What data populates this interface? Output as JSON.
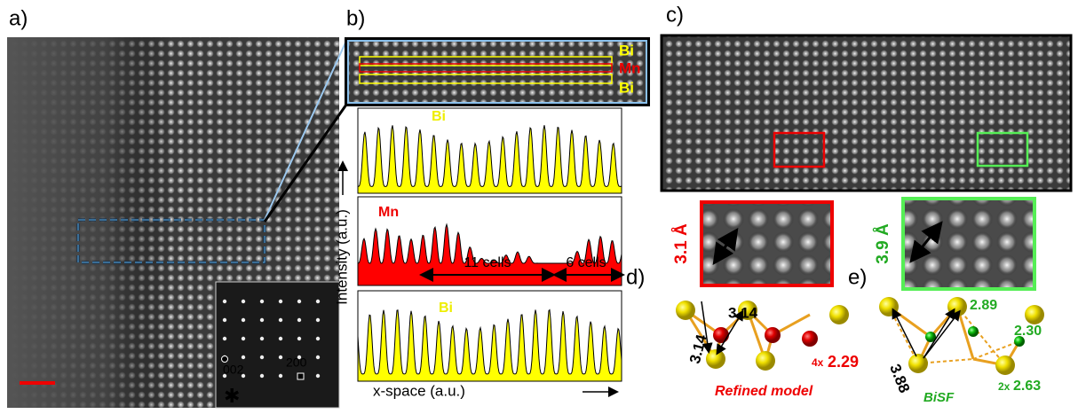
{
  "panels": {
    "a": {
      "label": "a)",
      "fft_labels": [
        "002",
        "200"
      ]
    },
    "b": {
      "label": "b)",
      "image_labels": [
        "Bi",
        "Mn",
        "Bi"
      ],
      "profile_labels": [
        "Bi",
        "Mn",
        "Bi"
      ],
      "spans": [
        "11 cells",
        "6 cells"
      ],
      "y_label": "Intensity (a.u.)",
      "x_label": "x-space (a.u.)"
    },
    "c": {
      "label": "c)",
      "distances": [
        "3.1 Å",
        "3.9 Å"
      ]
    },
    "d": {
      "label": "d)",
      "bonds": [
        "3.14",
        "3.14"
      ],
      "multiplier": "4x",
      "bond_value": "2.29",
      "caption": "Refined model"
    },
    "e": {
      "label": "e)",
      "bonds": [
        "3.88",
        "2.89",
        "2.30"
      ],
      "multiplier": "2x",
      "bond_value": "2.63",
      "caption": "BiSF"
    }
  }
}
